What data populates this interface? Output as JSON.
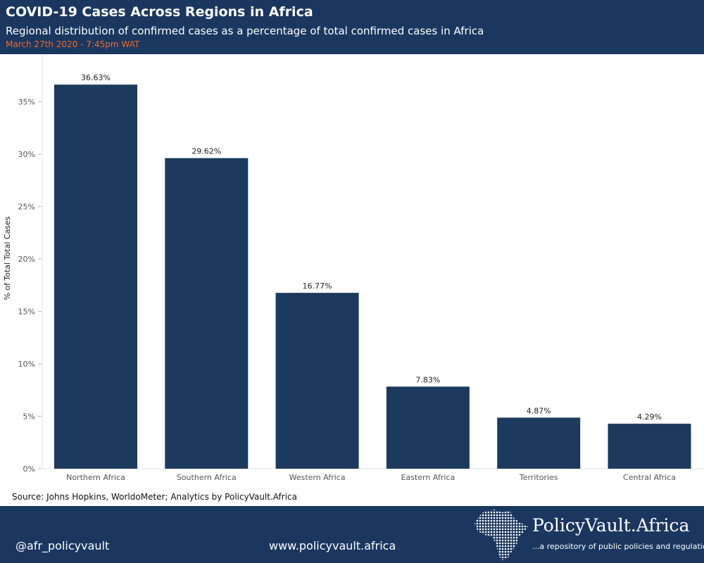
{
  "header": {
    "title": "COVID-19 Cases Across Regions in Africa",
    "subtitle": "Regional distribution of confirmed cases as a percentage of total confirmed cases in Africa",
    "date": "March 27th 2020 - 7:45pm WAT"
  },
  "source": "Source: Johns Hopkins, WorldoMeter; Analytics by PolicyVault.Africa",
  "footer": {
    "handle": "@afr_policyvault",
    "website": "www.policyvault.africa",
    "brand": "PolicyVault.Africa",
    "tagline": "...a repository of public policies and regulation",
    "logo_icon": "africa-map-icon"
  },
  "colors": {
    "navy": "#1b3760",
    "bar": "#1b3a5e",
    "accent": "#f06a2a"
  },
  "chart_data": {
    "type": "bar",
    "categories": [
      "Northern Africa",
      "Southern Africa",
      "Western Africa",
      "Eastern Africa",
      "Territories",
      "Central Africa"
    ],
    "values": [
      36.63,
      29.62,
      16.77,
      7.83,
      4.87,
      4.29
    ],
    "data_labels": [
      "36.63%",
      "29.62%",
      "16.77%",
      "7.83%",
      "4.87%",
      "4.29%"
    ],
    "ylabel": "% of Total Total Cases",
    "yticks": [
      0,
      5,
      10,
      15,
      20,
      25,
      30,
      35
    ],
    "ytick_labels": [
      "0%",
      "5%",
      "10%",
      "15%",
      "20%",
      "25%",
      "30%",
      "35%"
    ],
    "ylim": [
      0,
      40
    ],
    "grid": false
  }
}
